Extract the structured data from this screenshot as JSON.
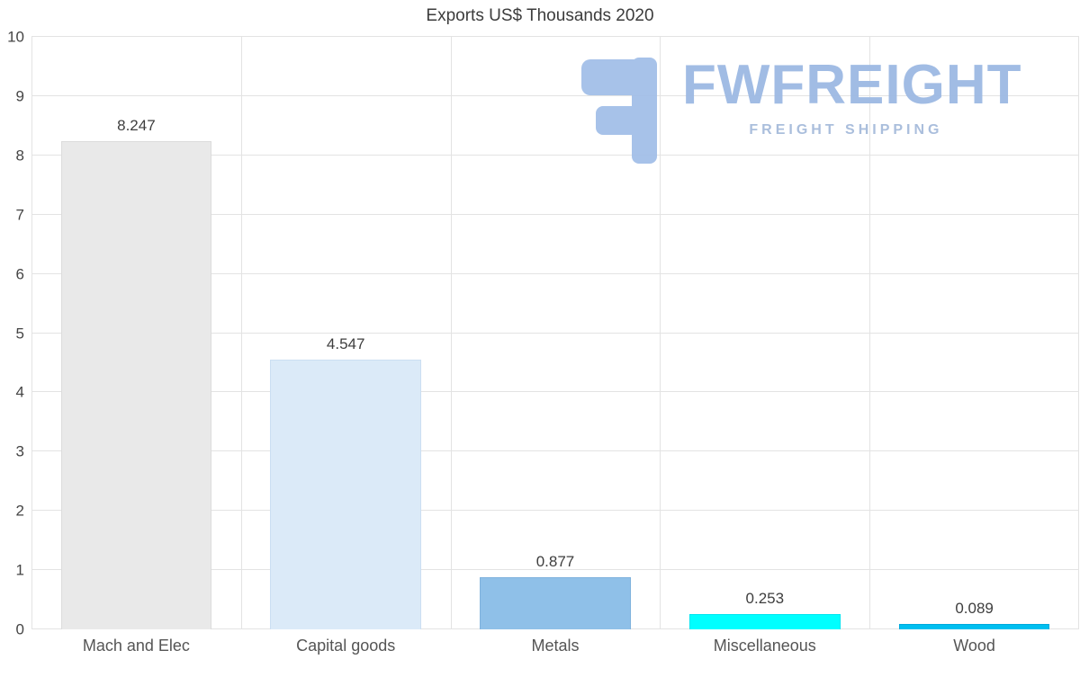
{
  "chart_data": {
    "type": "bar",
    "title": "Exports US$ Thousands 2020",
    "categories": [
      "Mach and Elec",
      "Capital goods",
      "Metals",
      "Miscellaneous",
      "Wood"
    ],
    "values": [
      8.247,
      4.547,
      0.877,
      0.253,
      0.089
    ],
    "value_labels": [
      "8.247",
      "4.547",
      "0.877",
      "0.253",
      "0.089"
    ],
    "bar_colors": [
      "#e9e9e9",
      "#dbeaf8",
      "#8fc0e8",
      "#00ffff",
      "#00bff0"
    ],
    "bar_border_colors": [
      "#dcdcdc",
      "#cbdff2",
      "#7fb2dd",
      "#00e5f0",
      "#00aadd"
    ],
    "xlabel": "",
    "ylabel": "",
    "ylim": [
      0,
      10
    ],
    "yticks": [
      0,
      1,
      2,
      3,
      4,
      5,
      6,
      7,
      8,
      9,
      10
    ],
    "grid": true,
    "legend_position": "none"
  },
  "watermark": {
    "brand": "FWFREIGHT",
    "tagline": "FREIGHT SHIPPING",
    "brand_color": "#9db9e3",
    "tagline_color": "#a6bbdb",
    "icon": "fwfreight-logo-icon",
    "icon_color": "#a3bfe8"
  }
}
